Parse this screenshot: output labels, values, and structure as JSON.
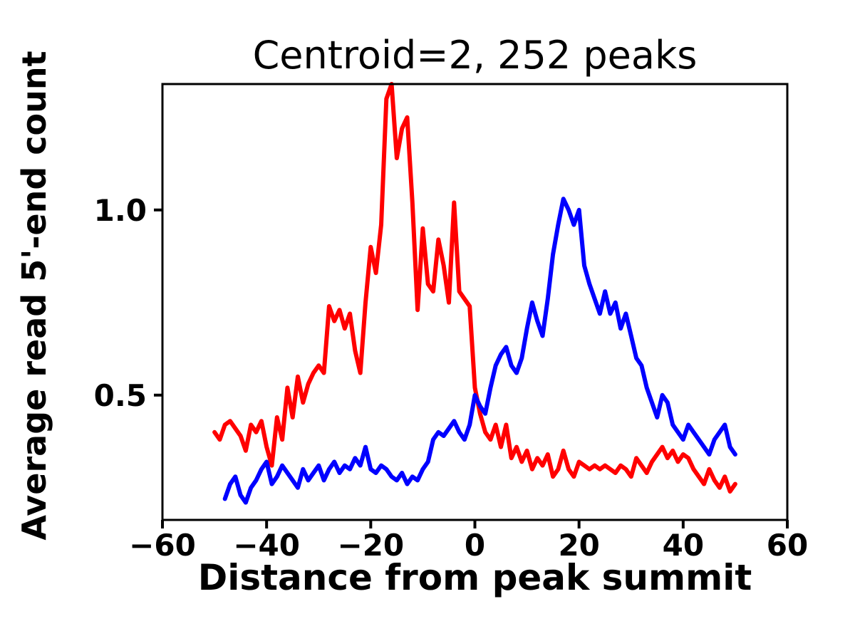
{
  "chart_data": {
    "type": "line",
    "title": "Centroid=2, 252 peaks",
    "xlabel": "Distance from peak summit",
    "ylabel": "Average read 5'-end count",
    "xlim": [
      -60,
      60
    ],
    "ylim": [
      0.163,
      1.34
    ],
    "xticks": [
      -60,
      -40,
      -20,
      0,
      20,
      40,
      60
    ],
    "xtick_labels": [
      "−60",
      "−40",
      "−20",
      "0",
      "20",
      "40",
      "60"
    ],
    "yticks": [
      0.5,
      1.0
    ],
    "ytick_labels": [
      "0.5",
      "1.0"
    ],
    "grid": false,
    "legend": null,
    "frame_color": "#000000",
    "line_width": 6,
    "series": [
      {
        "name": "red-series",
        "color": "#ff0000",
        "x": [
          -50,
          -49,
          -48,
          -47,
          -46,
          -45,
          -44,
          -43,
          -42,
          -41,
          -40,
          -39,
          -38,
          -37,
          -36,
          -35,
          -34,
          -33,
          -32,
          -31,
          -30,
          -29,
          -28,
          -27,
          -26,
          -25,
          -24,
          -23,
          -22,
          -21,
          -20,
          -19,
          -18,
          -17,
          -16,
          -15,
          -14,
          -13,
          -12,
          -11,
          -10,
          -9,
          -8,
          -7,
          -6,
          -5,
          -4,
          -3,
          -2,
          -1,
          0,
          1,
          2,
          3,
          4,
          5,
          6,
          7,
          8,
          9,
          10,
          11,
          12,
          13,
          14,
          15,
          16,
          17,
          18,
          19,
          20,
          21,
          22,
          23,
          24,
          25,
          26,
          27,
          28,
          29,
          30,
          31,
          32,
          33,
          34,
          35,
          36,
          37,
          38,
          39,
          40,
          41,
          42,
          43,
          44,
          45,
          46,
          47,
          48,
          49,
          50
        ],
        "values": [
          0.4,
          0.38,
          0.42,
          0.43,
          0.41,
          0.39,
          0.35,
          0.42,
          0.4,
          0.43,
          0.36,
          0.31,
          0.44,
          0.38,
          0.52,
          0.44,
          0.55,
          0.48,
          0.53,
          0.56,
          0.58,
          0.56,
          0.74,
          0.7,
          0.73,
          0.68,
          0.72,
          0.62,
          0.56,
          0.75,
          0.9,
          0.83,
          0.96,
          1.3,
          1.34,
          1.14,
          1.22,
          1.25,
          1.02,
          0.73,
          0.95,
          0.8,
          0.78,
          0.92,
          0.85,
          0.75,
          1.02,
          0.78,
          0.76,
          0.74,
          0.52,
          0.45,
          0.4,
          0.38,
          0.42,
          0.36,
          0.42,
          0.33,
          0.36,
          0.32,
          0.35,
          0.3,
          0.33,
          0.31,
          0.34,
          0.28,
          0.3,
          0.35,
          0.3,
          0.28,
          0.32,
          0.31,
          0.3,
          0.31,
          0.3,
          0.31,
          0.3,
          0.29,
          0.31,
          0.3,
          0.28,
          0.33,
          0.31,
          0.29,
          0.32,
          0.34,
          0.36,
          0.33,
          0.35,
          0.32,
          0.34,
          0.33,
          0.3,
          0.28,
          0.26,
          0.3,
          0.27,
          0.25,
          0.28,
          0.24,
          0.26
        ]
      },
      {
        "name": "blue-series",
        "color": "#0000ff",
        "x": [
          -48,
          -47,
          -46,
          -45,
          -44,
          -43,
          -42,
          -41,
          -40,
          -39,
          -38,
          -37,
          -36,
          -35,
          -34,
          -33,
          -32,
          -31,
          -30,
          -29,
          -28,
          -27,
          -26,
          -25,
          -24,
          -23,
          -22,
          -21,
          -20,
          -19,
          -18,
          -17,
          -16,
          -15,
          -14,
          -13,
          -12,
          -11,
          -10,
          -9,
          -8,
          -7,
          -6,
          -5,
          -4,
          -3,
          -2,
          -1,
          0,
          1,
          2,
          3,
          4,
          5,
          6,
          7,
          8,
          9,
          10,
          11,
          12,
          13,
          14,
          15,
          16,
          17,
          18,
          19,
          20,
          21,
          22,
          23,
          24,
          25,
          26,
          27,
          28,
          29,
          30,
          31,
          32,
          33,
          34,
          35,
          36,
          37,
          38,
          39,
          40,
          41,
          42,
          43,
          44,
          45,
          46,
          47,
          48,
          49,
          50
        ],
        "values": [
          0.22,
          0.26,
          0.28,
          0.23,
          0.21,
          0.25,
          0.27,
          0.3,
          0.32,
          0.26,
          0.28,
          0.31,
          0.29,
          0.27,
          0.25,
          0.3,
          0.27,
          0.29,
          0.31,
          0.27,
          0.3,
          0.32,
          0.29,
          0.31,
          0.3,
          0.33,
          0.31,
          0.36,
          0.3,
          0.29,
          0.31,
          0.3,
          0.28,
          0.27,
          0.29,
          0.26,
          0.28,
          0.27,
          0.3,
          0.32,
          0.38,
          0.4,
          0.39,
          0.41,
          0.43,
          0.4,
          0.38,
          0.42,
          0.5,
          0.47,
          0.45,
          0.52,
          0.58,
          0.61,
          0.63,
          0.58,
          0.56,
          0.6,
          0.68,
          0.75,
          0.7,
          0.66,
          0.76,
          0.88,
          0.96,
          1.03,
          1.0,
          0.96,
          1.0,
          0.85,
          0.8,
          0.76,
          0.72,
          0.78,
          0.72,
          0.75,
          0.68,
          0.72,
          0.66,
          0.6,
          0.58,
          0.52,
          0.48,
          0.44,
          0.5,
          0.48,
          0.42,
          0.4,
          0.38,
          0.42,
          0.4,
          0.38,
          0.36,
          0.34,
          0.38,
          0.4,
          0.42,
          0.36,
          0.34
        ]
      }
    ]
  }
}
